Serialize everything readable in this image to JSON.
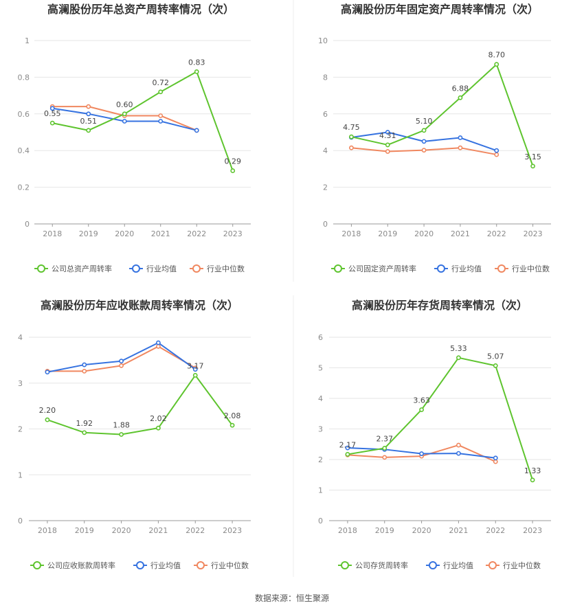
{
  "source_label": "数据来源：恒生聚源",
  "colors": {
    "company": "#5ec42e",
    "average": "#3572e0",
    "median": "#f0875f",
    "grid": "#e6e6e6",
    "axis": "#999999",
    "divider": "#eeeeee"
  },
  "chart_data": [
    {
      "type": "line",
      "title": "高澜股份历年总资产周转率情况（次）",
      "categories": [
        "2018",
        "2019",
        "2020",
        "2021",
        "2022",
        "2023"
      ],
      "yticks": [
        "0",
        "0.2",
        "0.4",
        "0.6",
        "0.8",
        "1"
      ],
      "ylim": [
        0,
        1
      ],
      "legend_position": "bottom",
      "series": [
        {
          "name": "公司总资产周转率",
          "color": "#5ec42e",
          "values": [
            0.55,
            0.51,
            0.6,
            0.72,
            0.83,
            0.29
          ],
          "labels": [
            "0.55",
            "0.51",
            "0.60",
            "0.72",
            "0.83",
            "0.29"
          ]
        },
        {
          "name": "行业均值",
          "color": "#3572e0",
          "values": [
            0.63,
            0.6,
            0.56,
            0.56,
            0.51,
            null
          ]
        },
        {
          "name": "行业中位数",
          "color": "#f0875f",
          "values": [
            0.64,
            0.64,
            0.59,
            0.59,
            0.51,
            null
          ]
        }
      ]
    },
    {
      "type": "line",
      "title": "高澜股份历年固定资产周转率情况（次）",
      "categories": [
        "2018",
        "2019",
        "2020",
        "2021",
        "2022",
        "2023"
      ],
      "yticks": [
        "0",
        "2",
        "4",
        "6",
        "8",
        "10"
      ],
      "ylim": [
        0,
        10
      ],
      "legend_position": "bottom",
      "series": [
        {
          "name": "公司固定资产周转率",
          "color": "#5ec42e",
          "values": [
            4.75,
            4.31,
            5.1,
            6.88,
            8.7,
            3.15
          ],
          "labels": [
            "4.75",
            "4.31",
            "5.10",
            "6.88",
            "8.70",
            "3.15"
          ]
        },
        {
          "name": "行业均值",
          "color": "#3572e0",
          "values": [
            4.72,
            5.0,
            4.5,
            4.7,
            4.0,
            null
          ]
        },
        {
          "name": "行业中位数",
          "color": "#f0875f",
          "values": [
            4.15,
            3.95,
            4.02,
            4.15,
            3.78,
            null
          ]
        }
      ]
    },
    {
      "type": "line",
      "title": "高澜股份历年应收账款周转率情况（次）",
      "categories": [
        "2018",
        "2019",
        "2020",
        "2021",
        "2022",
        "2023"
      ],
      "yticks": [
        "0",
        "1",
        "2",
        "3",
        "4"
      ],
      "ylim": [
        0,
        4
      ],
      "legend_position": "bottom",
      "series": [
        {
          "name": "公司应收账款周转率",
          "color": "#5ec42e",
          "values": [
            2.2,
            1.92,
            1.88,
            2.02,
            3.17,
            2.08
          ],
          "labels": [
            "2.20",
            "1.92",
            "1.88",
            "2.02",
            "3.17",
            "2.08"
          ]
        },
        {
          "name": "行业均值",
          "color": "#3572e0",
          "values": [
            3.24,
            3.4,
            3.48,
            3.88,
            3.3,
            null
          ]
        },
        {
          "name": "行业中位数",
          "color": "#f0875f",
          "values": [
            3.26,
            3.26,
            3.38,
            3.8,
            3.33,
            null
          ]
        }
      ]
    },
    {
      "type": "line",
      "title": "高澜股份历年存货周转率情况（次）",
      "categories": [
        "2018",
        "2019",
        "2020",
        "2021",
        "2022",
        "2023"
      ],
      "yticks": [
        "0",
        "1",
        "2",
        "3",
        "4",
        "5",
        "6"
      ],
      "ylim": [
        0,
        6
      ],
      "legend_position": "bottom",
      "series": [
        {
          "name": "公司存货周转率",
          "color": "#5ec42e",
          "values": [
            2.17,
            2.37,
            3.63,
            5.33,
            5.07,
            1.33
          ],
          "labels": [
            "2.17",
            "2.37",
            "3.63",
            "5.33",
            "5.07",
            "1.33"
          ]
        },
        {
          "name": "行业均值",
          "color": "#3572e0",
          "values": [
            2.38,
            2.33,
            2.19,
            2.2,
            2.05,
            null
          ]
        },
        {
          "name": "行业中位数",
          "color": "#f0875f",
          "values": [
            2.15,
            2.07,
            2.11,
            2.47,
            1.93,
            null
          ]
        }
      ]
    }
  ]
}
